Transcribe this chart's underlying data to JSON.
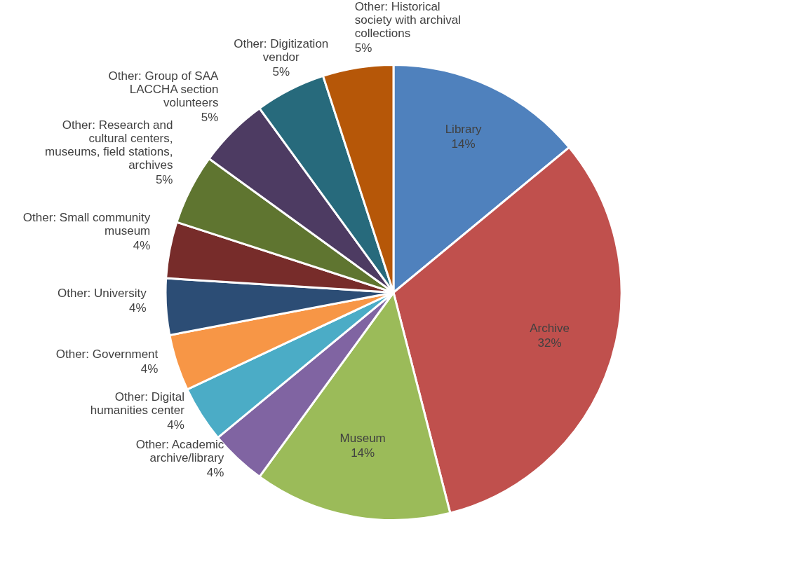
{
  "chart_data": {
    "type": "pie",
    "categories": [
      "Library",
      "Archive",
      "Museum",
      "Other: Academic archive/library",
      "Other: Digital humanities center",
      "Other: Government",
      "Other: University",
      "Other: Small community museum",
      "Other: Research and cultural centers, museums, field stations, archives",
      "Other: Group of SAA LACCHA section volunteers",
      "Other: Digitization vendor",
      "Other: Historical society with archival collections"
    ],
    "values": [
      14,
      32,
      14,
      4,
      4,
      4,
      4,
      4,
      5,
      5,
      5,
      5
    ],
    "value_labels": [
      "14%",
      "32%",
      "14%",
      "4%",
      "4%",
      "4%",
      "4%",
      "4%",
      "5%",
      "5%",
      "5%",
      "5%"
    ],
    "colors": [
      "#4f81bd",
      "#c0504d",
      "#9bbb59",
      "#8064a2",
      "#4bacc6",
      "#f79646",
      "#2c4d75",
      "#772c2a",
      "#5f7530",
      "#4d3b62",
      "#276a7c",
      "#b65708"
    ]
  }
}
